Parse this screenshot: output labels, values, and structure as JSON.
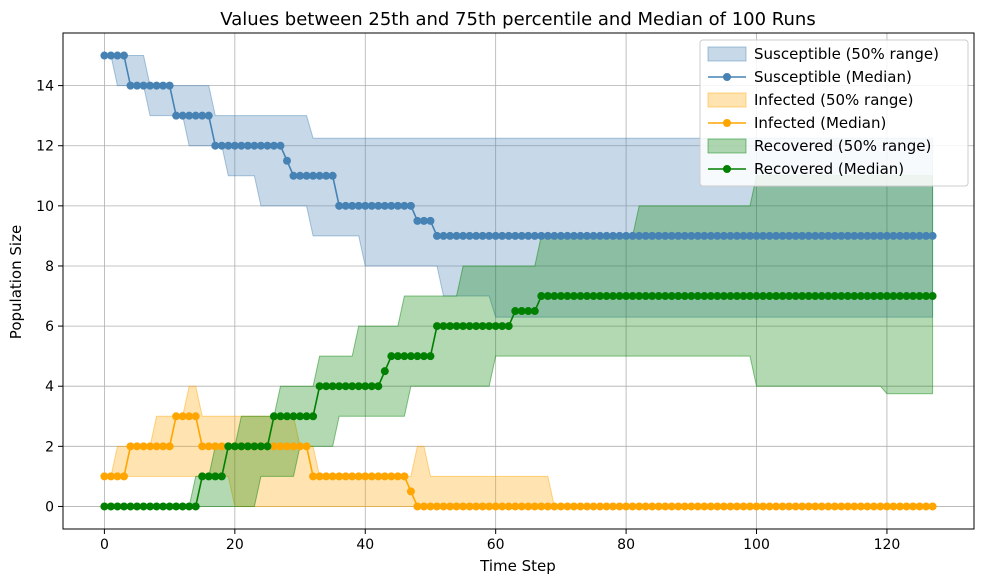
{
  "chart_data": {
    "type": "line",
    "title": "Values between 25th and 75th percentile and Median of 100 Runs",
    "xlabel": "Time Step",
    "ylabel": "Population Size",
    "xlim": [
      -6.35,
      133.35
    ],
    "ylim": [
      -0.75,
      15.75
    ],
    "xticks": [
      0,
      20,
      40,
      60,
      80,
      100,
      120
    ],
    "yticks": [
      0,
      2,
      4,
      6,
      8,
      10,
      12,
      14
    ],
    "grid": true,
    "legend_position": "top-right",
    "bands": [
      {
        "name": "Susceptible (50% range)",
        "color": "#4682b4",
        "lower_steps": [
          [
            0,
            15
          ],
          [
            2,
            14
          ],
          [
            7,
            13
          ],
          [
            13,
            12
          ],
          [
            19,
            11
          ],
          [
            24,
            10
          ],
          [
            32,
            9
          ],
          [
            40,
            8
          ],
          [
            52,
            7
          ],
          [
            55,
            7
          ],
          [
            60,
            6.3
          ],
          [
            127,
            6.3
          ]
        ],
        "upper_steps": [
          [
            0,
            15
          ],
          [
            7,
            14
          ],
          [
            17,
            13
          ],
          [
            32,
            12.25
          ],
          [
            127,
            12.25
          ]
        ]
      },
      {
        "name": "Infected (50% range)",
        "color": "#ffa500",
        "lower_steps": [
          [
            0,
            1
          ],
          [
            20,
            0
          ],
          [
            127,
            0
          ]
        ],
        "upper_steps": [
          [
            0,
            1
          ],
          [
            2,
            2
          ],
          [
            8,
            3
          ],
          [
            13,
            4
          ],
          [
            15,
            3
          ],
          [
            30,
            2
          ],
          [
            33,
            1
          ],
          [
            48,
            2
          ],
          [
            50,
            1
          ],
          [
            60,
            1
          ],
          [
            69,
            0
          ],
          [
            127,
            0
          ]
        ]
      },
      {
        "name": "Recovered (50% range)",
        "color": "#008000",
        "lower_steps": [
          [
            0,
            0
          ],
          [
            24,
            1
          ],
          [
            30,
            2
          ],
          [
            36,
            3
          ],
          [
            47,
            4
          ],
          [
            60,
            5
          ],
          [
            100,
            4
          ],
          [
            120,
            3.75
          ],
          [
            127,
            3.75
          ]
        ],
        "upper_steps": [
          [
            0,
            0
          ],
          [
            14,
            1
          ],
          [
            17,
            2
          ],
          [
            21,
            3
          ],
          [
            27,
            4
          ],
          [
            33,
            5
          ],
          [
            39,
            6
          ],
          [
            46,
            7
          ],
          [
            55,
            8
          ],
          [
            67,
            9
          ],
          [
            82,
            10
          ],
          [
            100,
            11
          ],
          [
            127,
            11
          ]
        ]
      }
    ],
    "series": [
      {
        "name": "Susceptible (Median)",
        "color": "#4682b4",
        "x": [
          0,
          4,
          11,
          17,
          28,
          29,
          36,
          48,
          51,
          127
        ],
        "y": [
          15,
          14,
          13,
          12,
          11.5,
          11,
          10,
          9.5,
          9,
          9
        ],
        "interpolation": "hold"
      },
      {
        "name": "Infected (Median)",
        "color": "#ffa500",
        "x": [
          0,
          4,
          11,
          15,
          32,
          47,
          48,
          127
        ],
        "y": [
          1,
          2,
          3,
          2,
          1,
          0.5,
          0,
          0
        ],
        "interpolation": "hold"
      },
      {
        "name": "Recovered (Median)",
        "color": "#008000",
        "x": [
          0,
          15,
          19,
          26,
          33,
          43,
          44,
          51,
          63,
          67,
          127
        ],
        "y": [
          0,
          1,
          2,
          3,
          4,
          4.5,
          5,
          6,
          6.5,
          7,
          7
        ],
        "interpolation": "hold"
      }
    ]
  },
  "legend": [
    {
      "label": "Susceptible (50% range)",
      "kind": "band",
      "color": "#4682b4"
    },
    {
      "label": "Susceptible (Median)",
      "kind": "line",
      "color": "#4682b4"
    },
    {
      "label": "Infected (50% range)",
      "kind": "band",
      "color": "#ffa500"
    },
    {
      "label": "Infected (Median)",
      "kind": "line",
      "color": "#ffa500"
    },
    {
      "label": "Recovered (50% range)",
      "kind": "band",
      "color": "#008000"
    },
    {
      "label": "Recovered (Median)",
      "kind": "line",
      "color": "#008000"
    }
  ]
}
